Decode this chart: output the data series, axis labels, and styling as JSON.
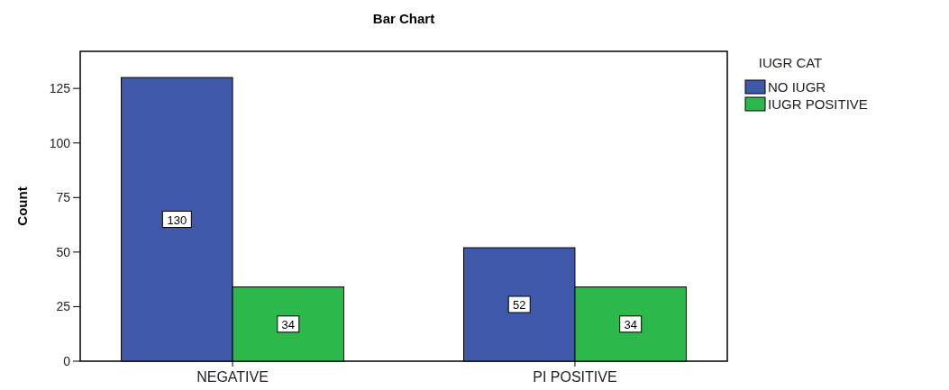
{
  "chart_data": {
    "type": "bar",
    "title": "Bar Chart",
    "ylabel": "Count",
    "legend_title": "IUGR CAT",
    "categories": [
      "NEGATIVE",
      "PI POSITIVE"
    ],
    "series": [
      {
        "name": "NO IUGR",
        "color": "#3f58aa",
        "values": [
          130,
          52
        ]
      },
      {
        "name": "IUGR POSITIVE",
        "color": "#2db84b",
        "values": [
          34,
          34
        ]
      }
    ],
    "ylim": [
      0,
      142
    ],
    "yticks": [
      0,
      25,
      50,
      75,
      100,
      125
    ],
    "data_labels": true,
    "legend": "top right",
    "grid": false
  }
}
